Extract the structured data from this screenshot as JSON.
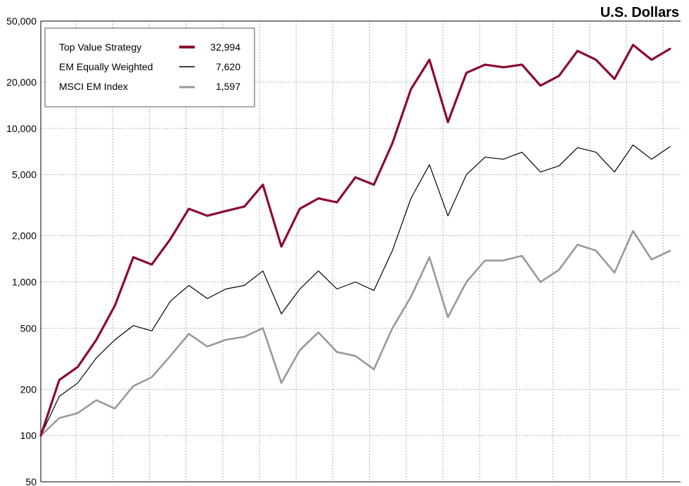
{
  "chart_data": {
    "type": "line",
    "unit_label": "U.S. Dollars",
    "y_scale": "log",
    "ylim": [
      50,
      50000
    ],
    "y_ticks": [
      {
        "value": 50000,
        "label": "50,000"
      },
      {
        "value": 20000,
        "label": "20,000"
      },
      {
        "value": 10000,
        "label": "10,000"
      },
      {
        "value": 5000,
        "label": "5,000"
      },
      {
        "value": 2000,
        "label": "2,000"
      },
      {
        "value": 1000,
        "label": "1,000"
      },
      {
        "value": 500,
        "label": "500"
      },
      {
        "value": 200,
        "label": "200"
      },
      {
        "value": 100,
        "label": "100"
      },
      {
        "value": 50,
        "label": "50"
      }
    ],
    "grid": true,
    "legend_placement": "top-left",
    "series": [
      {
        "name": "Top Value Strategy",
        "final_value_label": "32,994",
        "color": "#8b0a2f",
        "style": "thick",
        "values": [
          100,
          230,
          280,
          420,
          700,
          1450,
          1300,
          1900,
          3000,
          2700,
          2900,
          3100,
          4300,
          1700,
          3000,
          3500,
          3300,
          4800,
          4300,
          8000,
          18000,
          28000,
          11000,
          23000,
          26000,
          25000,
          26000,
          19000,
          22000,
          32000,
          28000,
          21000,
          35000,
          28000,
          32994
        ]
      },
      {
        "name": "EM Equally Weighted",
        "final_value_label": "7,620",
        "color": "#000000",
        "style": "thin",
        "values": [
          100,
          180,
          220,
          320,
          420,
          520,
          480,
          750,
          950,
          780,
          900,
          950,
          1180,
          620,
          900,
          1180,
          900,
          1000,
          880,
          1600,
          3500,
          5800,
          2700,
          5000,
          6500,
          6300,
          7000,
          5200,
          5700,
          7500,
          7000,
          5200,
          7800,
          6300,
          7620
        ]
      },
      {
        "name": "MSCI EM Index",
        "final_value_label": "1,597",
        "color": "#999999",
        "style": "medium",
        "values": [
          100,
          130,
          140,
          170,
          150,
          210,
          240,
          330,
          460,
          380,
          420,
          440,
          500,
          220,
          360,
          470,
          350,
          330,
          270,
          500,
          800,
          1450,
          590,
          1000,
          1380,
          1380,
          1480,
          1000,
          1200,
          1750,
          1600,
          1150,
          2150,
          1400,
          1597
        ]
      }
    ]
  }
}
